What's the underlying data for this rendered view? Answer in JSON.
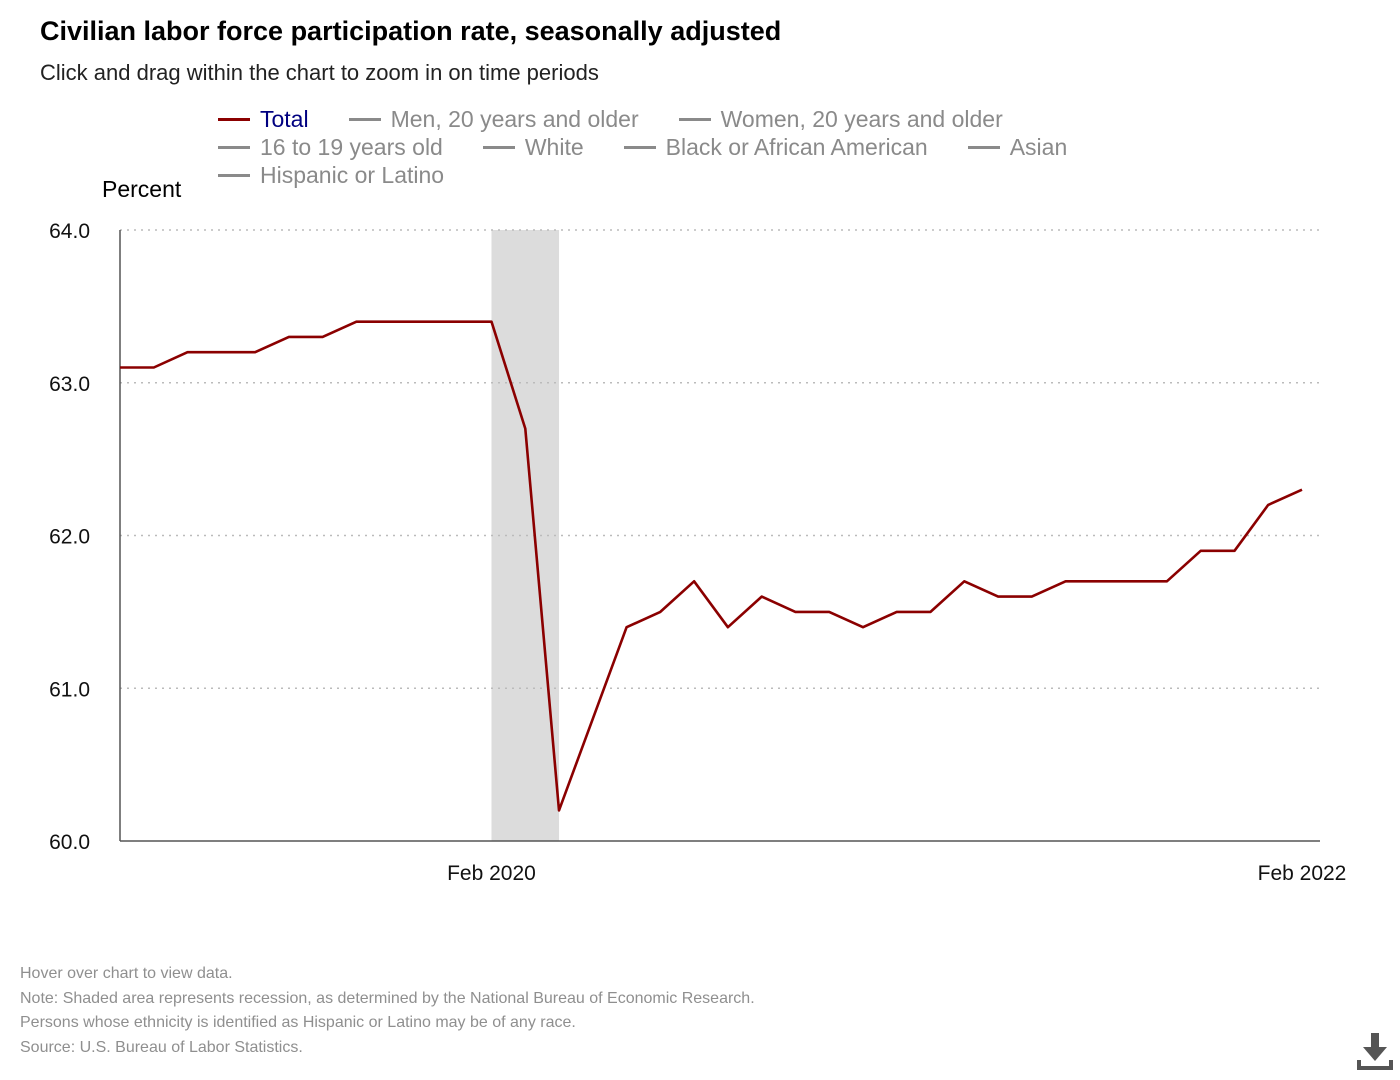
{
  "title": "Civilian labor force participation rate, seasonally adjusted",
  "subtitle": "Click and drag within the chart to zoom in on time periods",
  "legend": {
    "rows": [
      [
        {
          "label": "Total",
          "active": true
        },
        {
          "label": "Men, 20 years and older",
          "active": false
        },
        {
          "label": "Women, 20 years and older",
          "active": false
        }
      ],
      [
        {
          "label": "16 to 19 years old",
          "active": false
        },
        {
          "label": "White",
          "active": false
        },
        {
          "label": "Black or African American",
          "active": false
        },
        {
          "label": "Asian",
          "active": false
        }
      ],
      [
        {
          "label": "Hispanic or Latino",
          "active": false
        }
      ]
    ]
  },
  "notes": [
    "Hover over chart to view data.",
    "Note: Shaded area represents recession, as determined by the National Bureau of Economic Research.",
    "Persons whose ethnicity is identified as Hispanic or Latino may be of any race.",
    "Source: U.S. Bureau of Labor Statistics."
  ],
  "colors": {
    "series": "#8b0000",
    "legend_active_text": "#000080",
    "legend_inactive": "#8a8a8a",
    "recession": "#dcdcdc",
    "grid": "#bbbbbb",
    "axis": "#555555"
  },
  "icons": {
    "download": "download-icon"
  },
  "chart_data": {
    "type": "line",
    "title": "Civilian labor force participation rate, seasonally adjusted",
    "xlabel": "",
    "ylabel": "Percent",
    "ylim": [
      60.0,
      64.0
    ],
    "yticks": [
      "60.0",
      "61.0",
      "62.0",
      "63.0",
      "64.0"
    ],
    "grid": true,
    "legend_position": "top",
    "x_start_month": "Mar 2019",
    "xticks": [
      {
        "label": "Feb 2020",
        "index": 11
      },
      {
        "label": "Feb 2022",
        "index": 35
      }
    ],
    "recession": {
      "start_index": 11,
      "end_index": 13
    },
    "series": [
      {
        "name": "Total",
        "values": [
          63.1,
          63.1,
          63.2,
          63.2,
          63.2,
          63.3,
          63.3,
          63.4,
          63.4,
          63.4,
          63.4,
          63.4,
          62.7,
          60.2,
          60.8,
          61.4,
          61.5,
          61.7,
          61.4,
          61.6,
          61.5,
          61.5,
          61.4,
          61.5,
          61.5,
          61.7,
          61.6,
          61.6,
          61.7,
          61.7,
          61.7,
          61.7,
          61.9,
          61.9,
          62.2,
          62.3
        ]
      }
    ]
  }
}
